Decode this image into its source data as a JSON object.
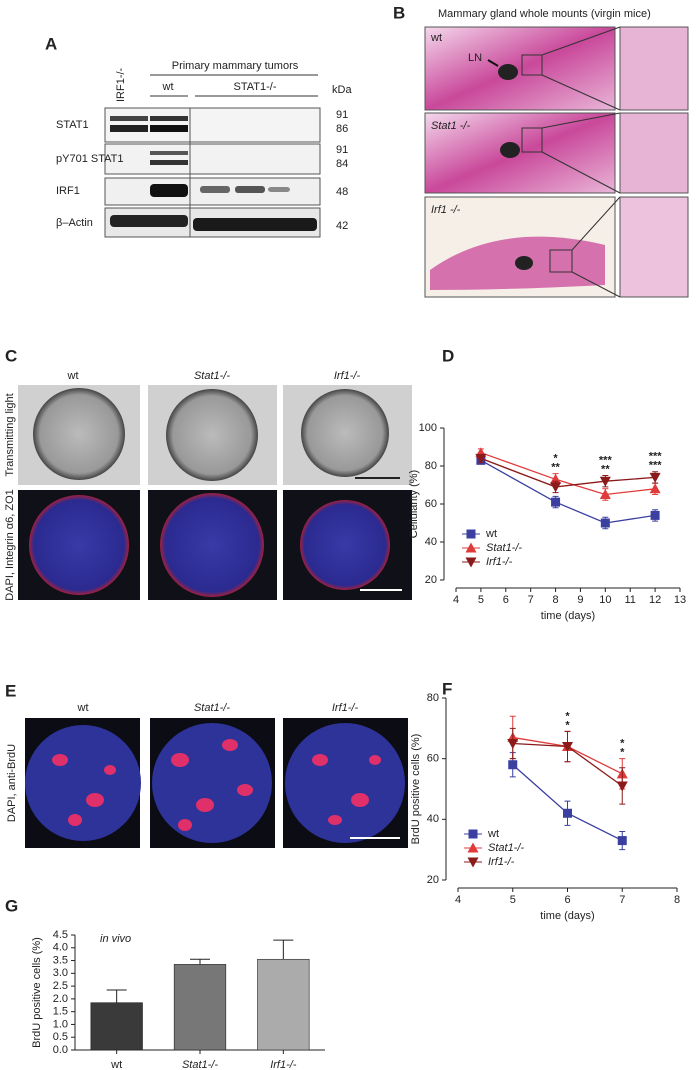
{
  "panels": {
    "A": {
      "letter": "A",
      "genotype_lane": "IRF1-/-",
      "group": "Primary mammary tumors",
      "wt": "wt",
      "ko": "STAT1-/-",
      "unit": "kDa",
      "rows": [
        "STAT1",
        "pY701 STAT1",
        "IRF1",
        "β–Actin"
      ],
      "sizes": [
        "91",
        "86",
        "91",
        "84",
        "48",
        "42"
      ]
    },
    "B": {
      "letter": "B",
      "title": "Mammary gland whole mounts (virgin mice)",
      "rows": [
        "wt",
        "Stat1 -/-",
        "Irf1 -/-"
      ],
      "node": "LN"
    },
    "C": {
      "letter": "C",
      "columns": [
        "wt",
        "Stat1-/-",
        "Irf1-/-"
      ],
      "row_labels": [
        "Transmitting light",
        "DAPI, Integrin α6, ZO1"
      ]
    },
    "E": {
      "letter": "E",
      "columns": [
        "wt",
        "Stat1-/-",
        "Irf1-/-"
      ],
      "row_label": "DAPI, anti-BrdU"
    }
  },
  "chart_data": [
    {
      "type": "line",
      "panel": "D",
      "ylabel": "Cellularity (%)",
      "xlabel": "time (days)",
      "x": [
        5,
        8,
        10,
        12
      ],
      "xlim": [
        4,
        13
      ],
      "xticks": [
        4,
        5,
        6,
        7,
        8,
        9,
        10,
        11,
        12,
        13
      ],
      "ylim": [
        20,
        100
      ],
      "yticks": [
        20,
        40,
        60,
        80,
        100
      ],
      "legend": "lower left",
      "series": [
        {
          "name": "wt",
          "color": "#3a3fa0",
          "marker": "square",
          "values": [
            83,
            61,
            50,
            54
          ],
          "errors": [
            2,
            3,
            3,
            3
          ]
        },
        {
          "name": "Stat1-/-",
          "color": "#e03a3a",
          "marker": "triangle-up",
          "values": [
            87,
            73,
            65,
            68
          ],
          "errors": [
            2,
            3,
            3,
            3
          ]
        },
        {
          "name": "Irf1-/-",
          "color": "#8b1a1a",
          "marker": "triangle-down",
          "values": [
            84,
            69,
            72,
            74
          ],
          "errors": [
            2,
            3,
            3,
            3
          ]
        }
      ],
      "annotations": [
        {
          "x": 8,
          "labels": [
            {
              "text": "*",
              "color": "#8b1a1a"
            },
            {
              "text": "**",
              "color": "#e03a3a"
            }
          ]
        },
        {
          "x": 10,
          "labels": [
            {
              "text": "***",
              "color": "#8b1a1a"
            },
            {
              "text": "**",
              "color": "#e03a3a"
            }
          ]
        },
        {
          "x": 12,
          "labels": [
            {
              "text": "***",
              "color": "#8b1a1a"
            },
            {
              "text": "***",
              "color": "#e03a3a"
            }
          ]
        }
      ]
    },
    {
      "type": "line",
      "panel": "F",
      "ylabel": "BrdU positive cells (%)",
      "xlabel": "time (days)",
      "x": [
        5,
        6,
        7
      ],
      "xlim": [
        4,
        8
      ],
      "xticks": [
        4,
        5,
        6,
        7,
        8
      ],
      "ylim": [
        20,
        80
      ],
      "yticks": [
        20,
        40,
        60,
        80
      ],
      "legend": "lower left",
      "series": [
        {
          "name": "wt",
          "color": "#3a3fa0",
          "marker": "square",
          "values": [
            58,
            42,
            33
          ],
          "errors": [
            4,
            4,
            3
          ]
        },
        {
          "name": "Stat1-/-",
          "color": "#e03a3a",
          "marker": "triangle-up",
          "values": [
            67,
            64,
            55
          ],
          "errors": [
            7,
            5,
            5
          ]
        },
        {
          "name": "Irf1-/-",
          "color": "#8b1a1a",
          "marker": "triangle-down",
          "values": [
            65,
            64,
            51
          ],
          "errors": [
            5,
            5,
            6
          ]
        }
      ],
      "annotations": [
        {
          "x": 6,
          "labels": [
            {
              "text": "*",
              "color": "#e03a3a"
            },
            {
              "text": "*",
              "color": "#8b1a1a"
            }
          ]
        },
        {
          "x": 7,
          "labels": [
            {
              "text": "*",
              "color": "#e03a3a"
            },
            {
              "text": "*",
              "color": "#8b1a1a"
            }
          ]
        }
      ]
    },
    {
      "type": "bar",
      "panel": "G",
      "ylabel": "BrdU positive cells (%)",
      "annotation": "in vivo",
      "categories": [
        "wt",
        "Stat1-/-",
        "Irf1-/-"
      ],
      "values": [
        1.85,
        3.35,
        3.55
      ],
      "errors": [
        0.5,
        0.2,
        0.75
      ],
      "colors": [
        "#3a3a3a",
        "#777777",
        "#ababab"
      ],
      "ylim": [
        0,
        4.5
      ],
      "yticks": [
        {
          "value": 0,
          "label": "0.0"
        },
        {
          "value": 0.5,
          "label": "0.5"
        },
        {
          "value": 1,
          "label": "1.0"
        },
        {
          "value": 1.5,
          "label": "1.5"
        },
        {
          "value": 2,
          "label": "2.0"
        },
        {
          "value": 2.5,
          "label": "2.5"
        },
        {
          "value": 3,
          "label": "3.0"
        },
        {
          "value": 3.5,
          "label": "3.5"
        },
        {
          "value": 4,
          "label": "4.0"
        },
        {
          "value": 4.5,
          "label": "4.5"
        }
      ]
    }
  ]
}
